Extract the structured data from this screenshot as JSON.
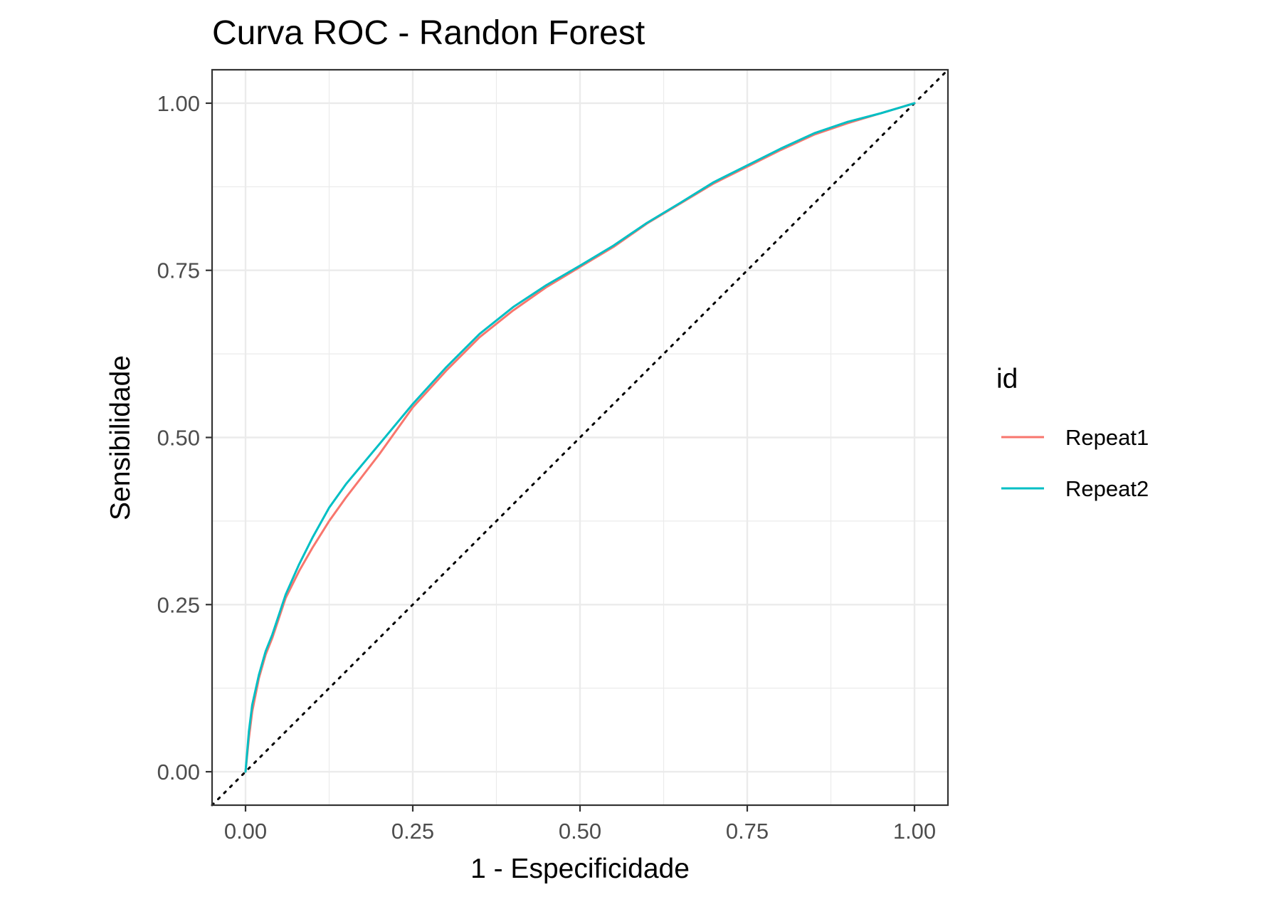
{
  "chart_data": {
    "type": "line",
    "title": "Curva ROC - Randon Forest",
    "xlabel": "1 - Especificidade",
    "ylabel": "Sensibilidade",
    "xlim": [
      -0.05,
      1.05
    ],
    "ylim": [
      -0.05,
      1.05
    ],
    "x_ticks": [
      0,
      0.25,
      0.5,
      0.75,
      1
    ],
    "x_tick_labels": [
      "0.00",
      "0.25",
      "0.50",
      "0.75",
      "1.00"
    ],
    "y_ticks": [
      0,
      0.25,
      0.5,
      0.75,
      1
    ],
    "y_tick_labels": [
      "0.00",
      "0.25",
      "0.50",
      "0.75",
      "1.00"
    ],
    "grid": true,
    "reference_line": {
      "x": [
        -0.05,
        1.05
      ],
      "y": [
        -0.05,
        1.05
      ],
      "style": "dotted",
      "color": "#000000"
    },
    "legend": {
      "title": "id",
      "position": "right"
    },
    "series": [
      {
        "name": "Repeat1",
        "color": "#F8766D",
        "x": [
          0,
          0.005,
          0.01,
          0.02,
          0.03,
          0.04,
          0.05,
          0.06,
          0.08,
          0.1,
          0.125,
          0.15,
          0.2,
          0.25,
          0.3,
          0.35,
          0.4,
          0.45,
          0.5,
          0.55,
          0.6,
          0.65,
          0.7,
          0.75,
          0.8,
          0.85,
          0.9,
          0.95,
          1
        ],
        "y": [
          0,
          0.05,
          0.09,
          0.14,
          0.175,
          0.2,
          0.23,
          0.26,
          0.3,
          0.335,
          0.375,
          0.41,
          0.475,
          0.545,
          0.6,
          0.65,
          0.69,
          0.725,
          0.755,
          0.785,
          0.82,
          0.85,
          0.88,
          0.905,
          0.93,
          0.953,
          0.97,
          0.985,
          1
        ]
      },
      {
        "name": "Repeat2",
        "color": "#00BFC4",
        "x": [
          0,
          0.005,
          0.01,
          0.02,
          0.03,
          0.04,
          0.05,
          0.06,
          0.08,
          0.1,
          0.125,
          0.15,
          0.2,
          0.25,
          0.3,
          0.35,
          0.4,
          0.45,
          0.5,
          0.55,
          0.6,
          0.65,
          0.7,
          0.75,
          0.8,
          0.85,
          0.9,
          0.95,
          1
        ],
        "y": [
          0,
          0.06,
          0.1,
          0.145,
          0.18,
          0.205,
          0.235,
          0.265,
          0.31,
          0.35,
          0.395,
          0.43,
          0.49,
          0.55,
          0.605,
          0.655,
          0.695,
          0.728,
          0.757,
          0.787,
          0.821,
          0.851,
          0.882,
          0.907,
          0.932,
          0.955,
          0.972,
          0.985,
          1
        ]
      }
    ]
  }
}
